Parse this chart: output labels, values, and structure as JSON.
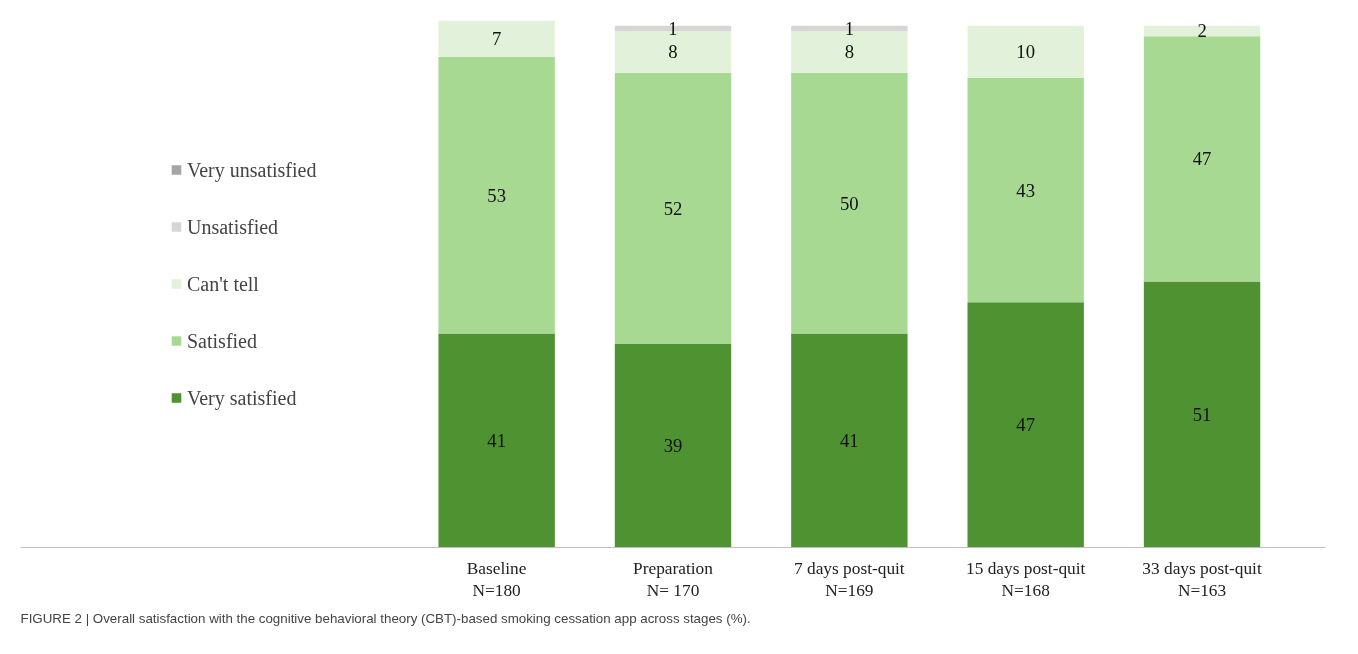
{
  "chart_data": {
    "type": "bar",
    "stacked": true,
    "data_labels": true,
    "legend": "left",
    "grid": false,
    "categories": [
      "Baseline\nN=180",
      "Preparation\nN= 170",
      "7 days post-quit\nN=169",
      "15 days post-quit\nN=168",
      "33 days post-quit\nN=163"
    ],
    "series": [
      {
        "name": "Very satisfied",
        "color": "#4e9232",
        "values": [
          41,
          39,
          41,
          47,
          51
        ]
      },
      {
        "name": "Satisfied",
        "color": "#a8d992",
        "values": [
          53,
          52,
          50,
          43,
          47
        ]
      },
      {
        "name": "Can't tell",
        "color": "#e2f2da",
        "values": [
          7,
          8,
          8,
          10,
          2
        ]
      },
      {
        "name": "Unsatisfied",
        "color": "#d6d6d6",
        "values": [
          null,
          1,
          1,
          null,
          null
        ]
      },
      {
        "name": "Very unsatisfied",
        "color": "#a5a5a5",
        "values": [
          null,
          null,
          null,
          null,
          null
        ]
      }
    ],
    "annotations": [
      "FIGURE 2 | Overall satisfaction with the cognitive behavioral theory (CBT)-based smoking cessation app across stages (%)."
    ]
  }
}
